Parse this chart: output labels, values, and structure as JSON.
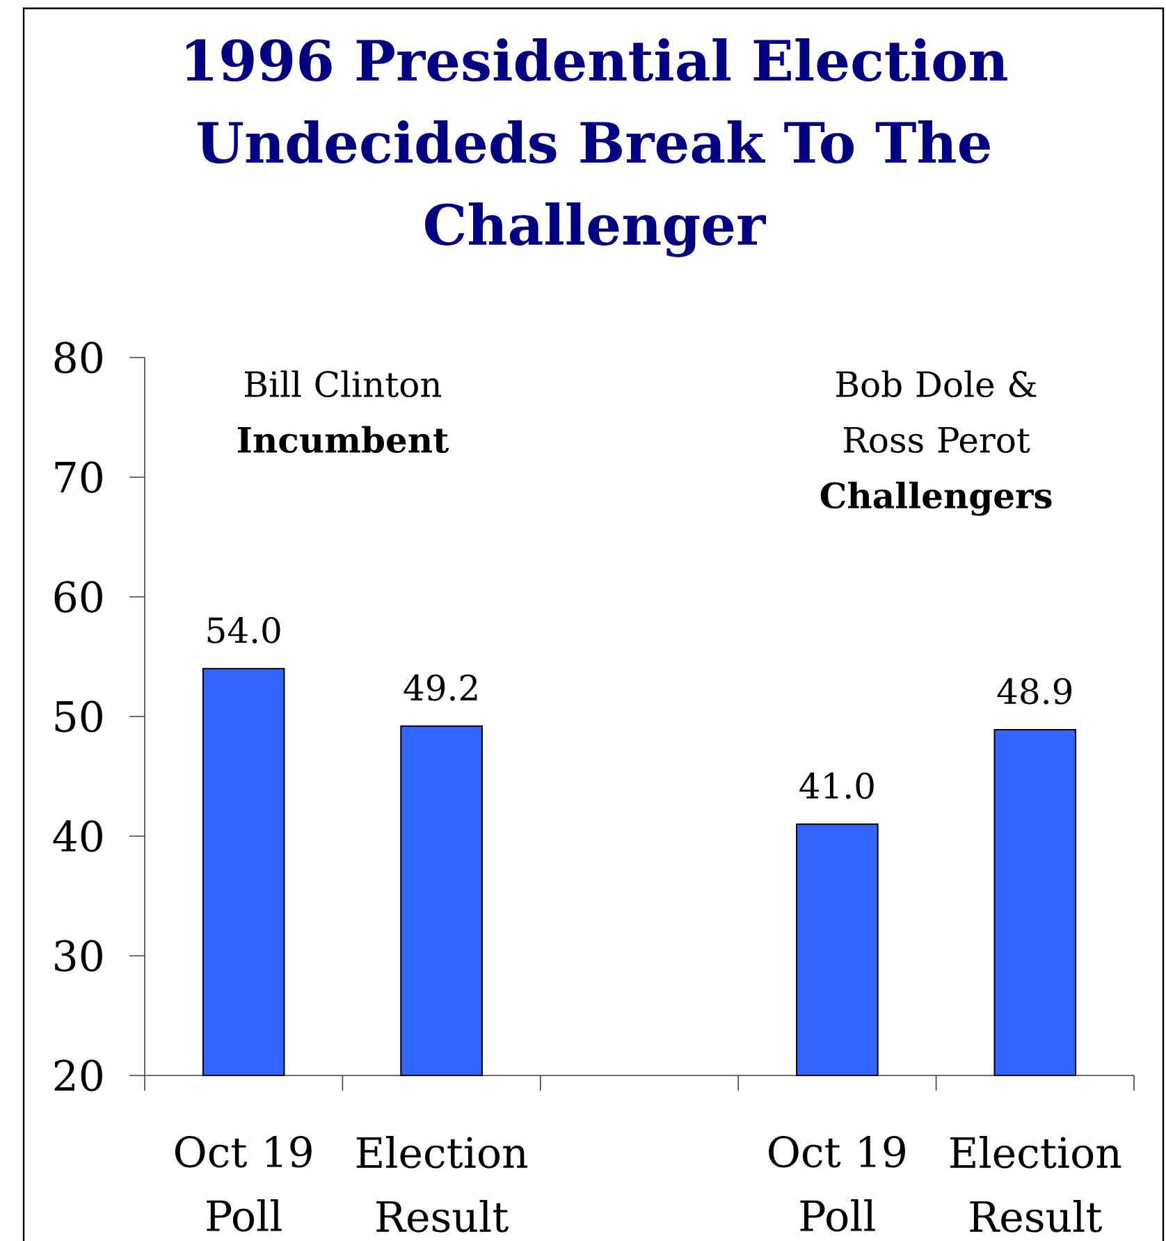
{
  "chart_data": {
    "type": "bar",
    "title": "1996 Presidential Election Undecideds Break To The Challenger",
    "categories": [
      "Oct 19 Poll",
      "Election Result",
      null,
      "Oct 19 Poll",
      "Election Result"
    ],
    "values": [
      54.0,
      49.2,
      null,
      41.0,
      48.9
    ],
    "value_labels": [
      "54.0",
      "49.2",
      null,
      "41.0",
      "48.9"
    ],
    "color": "#3366ff",
    "ylim": [
      20,
      80
    ],
    "yticks": [
      20,
      30,
      40,
      50,
      60,
      70,
      80
    ],
    "annotations": [
      "Bill Clinton **Incumbent**",
      "Bob Dole & Ross Perot **Challengers**"
    ]
  }
}
